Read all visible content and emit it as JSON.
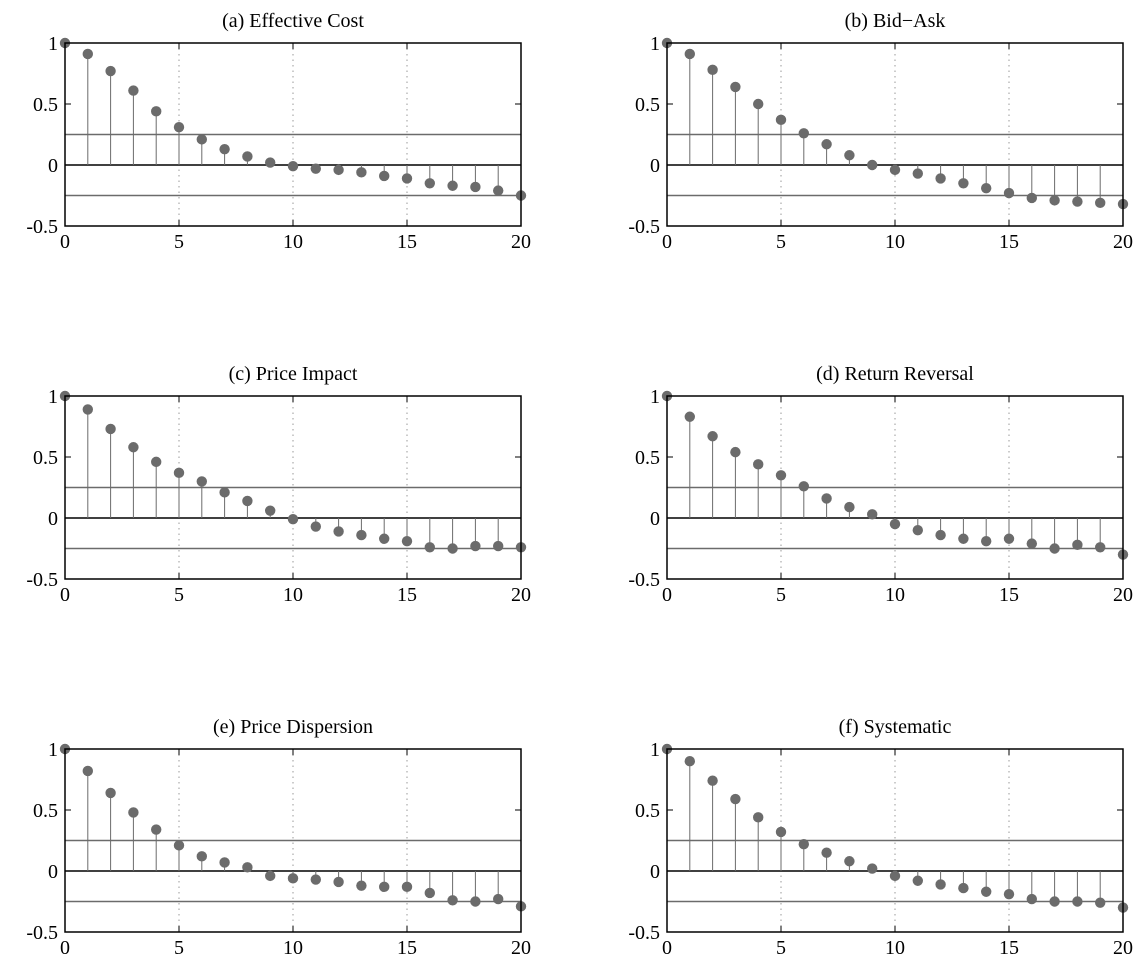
{
  "chart_data": [
    {
      "type": "stem",
      "title": "(a) Effective Cost",
      "xlabel": "",
      "ylabel": "",
      "xlim": [
        0,
        20
      ],
      "ylim": [
        -0.5,
        1
      ],
      "xticks": [
        "0",
        "5",
        "10",
        "15",
        "20"
      ],
      "yticks": [
        "-0.5",
        "0",
        "0.5",
        "1"
      ],
      "x": [
        0,
        1,
        2,
        3,
        4,
        5,
        6,
        7,
        8,
        9,
        10,
        11,
        12,
        13,
        14,
        15,
        16,
        17,
        18,
        19,
        20
      ],
      "values": [
        1.0,
        0.91,
        0.77,
        0.61,
        0.44,
        0.31,
        0.21,
        0.13,
        0.07,
        0.02,
        -0.01,
        -0.03,
        -0.04,
        -0.06,
        -0.09,
        -0.11,
        -0.15,
        -0.17,
        -0.18,
        -0.21,
        -0.25
      ],
      "confidence_bounds": [
        0.25,
        -0.25
      ],
      "grid": "dotted vertical"
    },
    {
      "type": "stem",
      "title": "(b) Bid−Ask",
      "xlabel": "",
      "ylabel": "",
      "xlim": [
        0,
        20
      ],
      "ylim": [
        -0.5,
        1
      ],
      "xticks": [
        "0",
        "5",
        "10",
        "15",
        "20"
      ],
      "yticks": [
        "-0.5",
        "0",
        "0.5",
        "1"
      ],
      "x": [
        0,
        1,
        2,
        3,
        4,
        5,
        6,
        7,
        8,
        9,
        10,
        11,
        12,
        13,
        14,
        15,
        16,
        17,
        18,
        19,
        20
      ],
      "values": [
        1.0,
        0.91,
        0.78,
        0.64,
        0.5,
        0.37,
        0.26,
        0.17,
        0.08,
        0.0,
        -0.04,
        -0.07,
        -0.11,
        -0.15,
        -0.19,
        -0.23,
        -0.27,
        -0.29,
        -0.3,
        -0.31,
        -0.32
      ],
      "confidence_bounds": [
        0.25,
        -0.25
      ],
      "grid": "dotted vertical"
    },
    {
      "type": "stem",
      "title": "(c) Price Impact",
      "xlabel": "",
      "ylabel": "",
      "xlim": [
        0,
        20
      ],
      "ylim": [
        -0.5,
        1
      ],
      "xticks": [
        "0",
        "5",
        "10",
        "15",
        "20"
      ],
      "yticks": [
        "-0.5",
        "0",
        "0.5",
        "1"
      ],
      "x": [
        0,
        1,
        2,
        3,
        4,
        5,
        6,
        7,
        8,
        9,
        10,
        11,
        12,
        13,
        14,
        15,
        16,
        17,
        18,
        19,
        20
      ],
      "values": [
        1.0,
        0.89,
        0.73,
        0.58,
        0.46,
        0.37,
        0.3,
        0.21,
        0.14,
        0.06,
        -0.01,
        -0.07,
        -0.11,
        -0.14,
        -0.17,
        -0.19,
        -0.24,
        -0.25,
        -0.23,
        -0.23,
        -0.24
      ],
      "confidence_bounds": [
        0.25,
        -0.25
      ],
      "grid": "dotted vertical"
    },
    {
      "type": "stem",
      "title": "(d) Return Reversal",
      "xlabel": "",
      "ylabel": "",
      "xlim": [
        0,
        20
      ],
      "ylim": [
        -0.5,
        1
      ],
      "xticks": [
        "0",
        "5",
        "10",
        "15",
        "20"
      ],
      "yticks": [
        "-0.5",
        "0",
        "0.5",
        "1"
      ],
      "x": [
        0,
        1,
        2,
        3,
        4,
        5,
        6,
        7,
        8,
        9,
        10,
        11,
        12,
        13,
        14,
        15,
        16,
        17,
        18,
        19,
        20
      ],
      "values": [
        1.0,
        0.83,
        0.67,
        0.54,
        0.44,
        0.35,
        0.26,
        0.16,
        0.09,
        0.03,
        -0.05,
        -0.1,
        -0.14,
        -0.17,
        -0.19,
        -0.17,
        -0.21,
        -0.25,
        -0.22,
        -0.24,
        -0.3
      ],
      "confidence_bounds": [
        0.25,
        -0.25
      ],
      "grid": "dotted vertical"
    },
    {
      "type": "stem",
      "title": "(e) Price Dispersion",
      "xlabel": "",
      "ylabel": "",
      "xlim": [
        0,
        20
      ],
      "ylim": [
        -0.5,
        1
      ],
      "xticks": [
        "0",
        "5",
        "10",
        "15",
        "20"
      ],
      "yticks": [
        "-0.5",
        "0",
        "0.5",
        "1"
      ],
      "x": [
        0,
        1,
        2,
        3,
        4,
        5,
        6,
        7,
        8,
        9,
        10,
        11,
        12,
        13,
        14,
        15,
        16,
        17,
        18,
        19,
        20
      ],
      "values": [
        1.0,
        0.82,
        0.64,
        0.48,
        0.34,
        0.21,
        0.12,
        0.07,
        0.03,
        -0.04,
        -0.06,
        -0.07,
        -0.09,
        -0.12,
        -0.13,
        -0.13,
        -0.18,
        -0.24,
        -0.25,
        -0.23,
        -0.29
      ],
      "confidence_bounds": [
        0.25,
        -0.25
      ],
      "grid": "dotted vertical"
    },
    {
      "type": "stem",
      "title": "(f) Systematic",
      "xlabel": "",
      "ylabel": "",
      "xlim": [
        0,
        20
      ],
      "ylim": [
        -0.5,
        1
      ],
      "xticks": [
        "0",
        "5",
        "10",
        "15",
        "20"
      ],
      "yticks": [
        "-0.5",
        "0",
        "0.5",
        "1"
      ],
      "x": [
        0,
        1,
        2,
        3,
        4,
        5,
        6,
        7,
        8,
        9,
        10,
        11,
        12,
        13,
        14,
        15,
        16,
        17,
        18,
        19,
        20
      ],
      "values": [
        1.0,
        0.9,
        0.74,
        0.59,
        0.44,
        0.32,
        0.22,
        0.15,
        0.08,
        0.02,
        -0.04,
        -0.08,
        -0.11,
        -0.14,
        -0.17,
        -0.19,
        -0.23,
        -0.25,
        -0.25,
        -0.26,
        -0.3
      ],
      "confidence_bounds": [
        0.25,
        -0.25
      ],
      "grid": "dotted vertical"
    }
  ],
  "colors": {
    "marker": "#6b6b6b",
    "stem": "#6b6b6b",
    "bounds": "#6b6b6b",
    "axes": "#000000",
    "grid": "#9a9a9a"
  }
}
